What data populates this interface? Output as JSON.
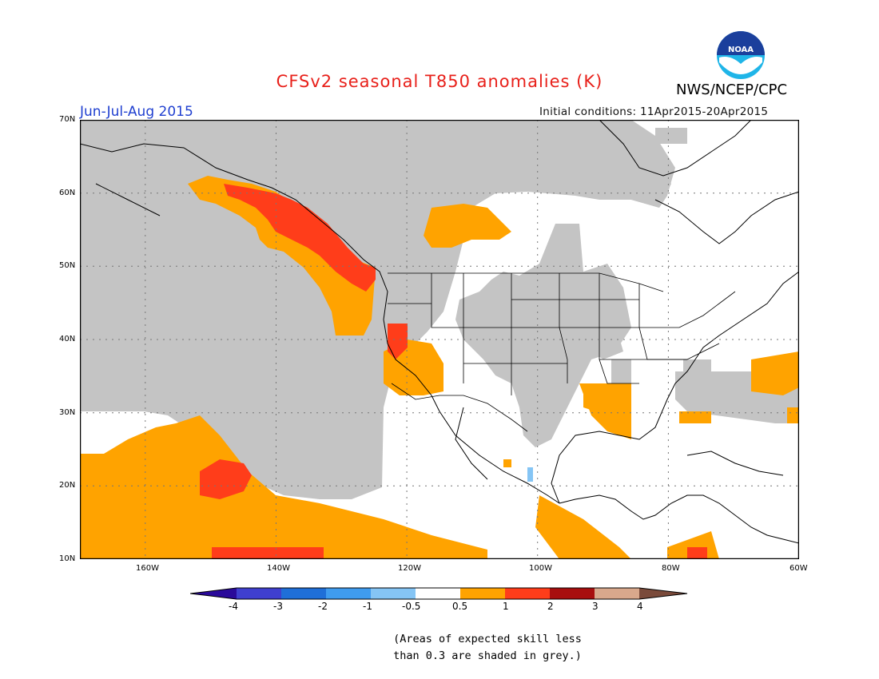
{
  "title": "CFSv2 seasonal T850 anomalies (K)",
  "agency": "NWS/NCEP/CPC",
  "season": "Jun-Jul-Aug 2015",
  "initial_conditions": "Initial conditions: 11Apr2015-20Apr2015",
  "map": {
    "lat_labels": [
      "70N",
      "60N",
      "50N",
      "40N",
      "30N",
      "20N",
      "10N"
    ],
    "lon_labels": [
      "160W",
      "140W",
      "120W",
      "100W",
      "80W",
      "60W"
    ],
    "skill_shading_color": "#c4c4c4",
    "ocean_land_color": "#ffffff"
  },
  "colorbar": {
    "labels": [
      "-4",
      "-3",
      "-2",
      "-1",
      "-0.5",
      "0.5",
      "1",
      "2",
      "3",
      "4"
    ],
    "colors": [
      "#2a0a9a",
      "#3f3fcf",
      "#1f6fd8",
      "#3f9cef",
      "#85c5f5",
      "#ffffff",
      "#ffa300",
      "#ff3d1a",
      "#a80f0f",
      "#d9a88c",
      "#7a4a3a"
    ]
  },
  "footnote": {
    "line1": "(Areas of expected skill less",
    "line2": "than 0.3 are shaded in grey.)"
  },
  "logo": {
    "text": "NOAA"
  }
}
